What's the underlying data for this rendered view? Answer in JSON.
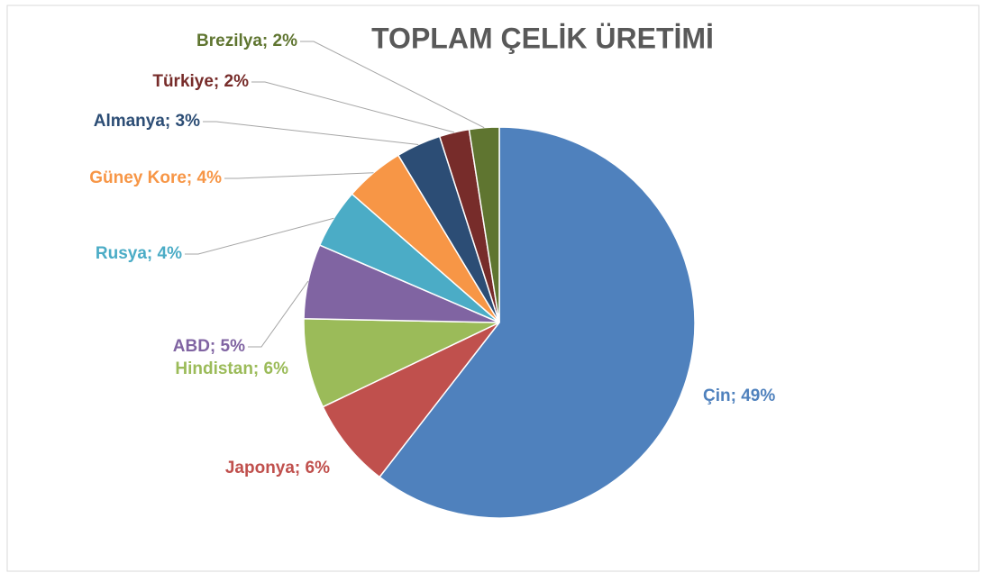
{
  "chart_data": {
    "type": "pie",
    "title": "TOPLAM ÇELİK ÜRETİMİ",
    "values": [
      49,
      6,
      6,
      5,
      4,
      4,
      3,
      2,
      2
    ],
    "value_labels": [
      "Çin; 49%",
      "Japonya; 6%",
      "Hindistan; 6%",
      "ABD; 5%",
      "Rusya; 4%",
      "Güney Kore; 4%",
      "Almanya; 3%",
      "Türkiye; 2%",
      "Brezilya; 2%"
    ],
    "colors": [
      "#4f81bd",
      "#c0504d",
      "#9bbb59",
      "#8064a2",
      "#4bacc6",
      "#f79646",
      "#2c4d75",
      "#772c2a",
      "#5f7530"
    ]
  }
}
